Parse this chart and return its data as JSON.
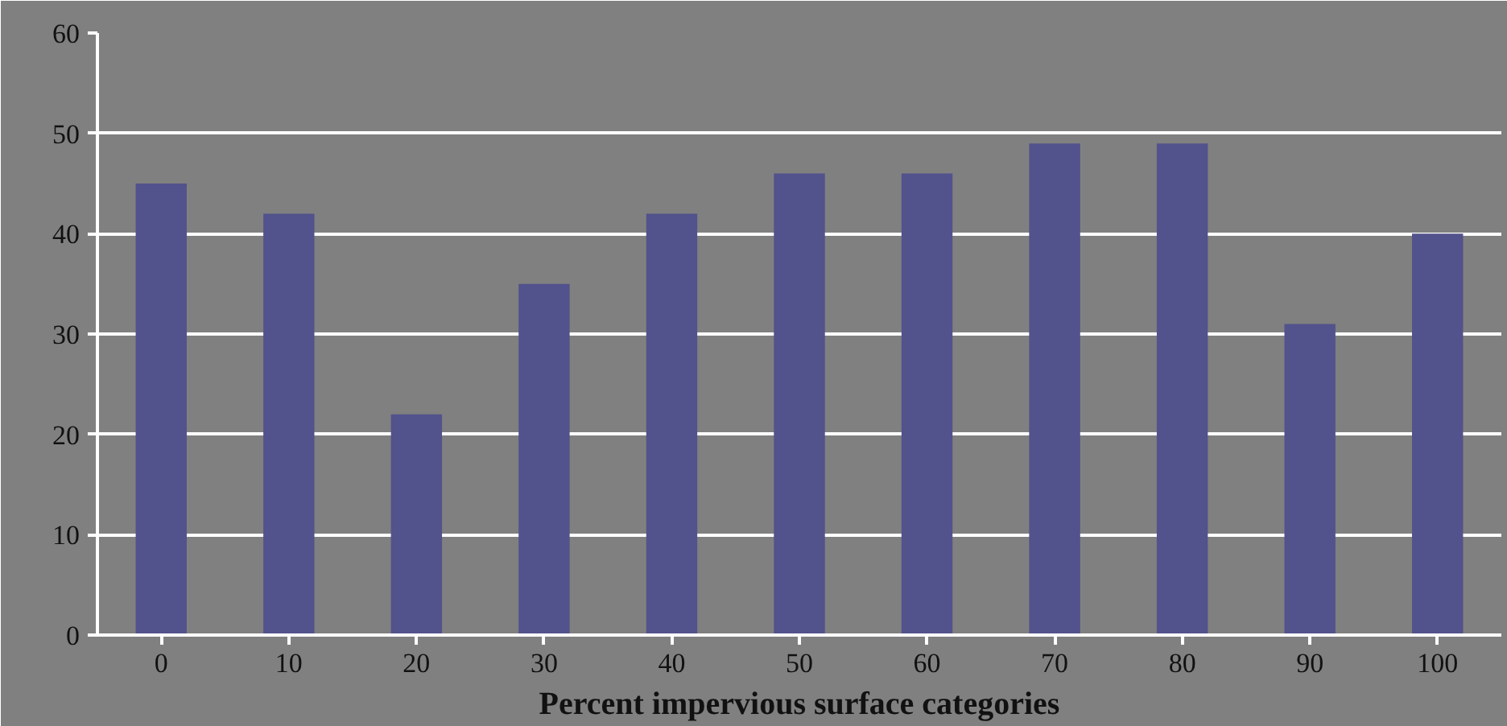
{
  "chart_data": {
    "type": "bar",
    "xlabel": "Percent impervious surface categories",
    "categories": [
      "0",
      "10",
      "20",
      "30",
      "40",
      "50",
      "60",
      "70",
      "80",
      "90",
      "100"
    ],
    "values": [
      45,
      42,
      22,
      35,
      42,
      46,
      46,
      49,
      49,
      31,
      40
    ],
    "color": "#52528c",
    "ylim": [
      0,
      60
    ],
    "yticks": [
      0,
      10,
      20,
      30,
      40,
      50,
      60
    ],
    "grid": "y"
  }
}
